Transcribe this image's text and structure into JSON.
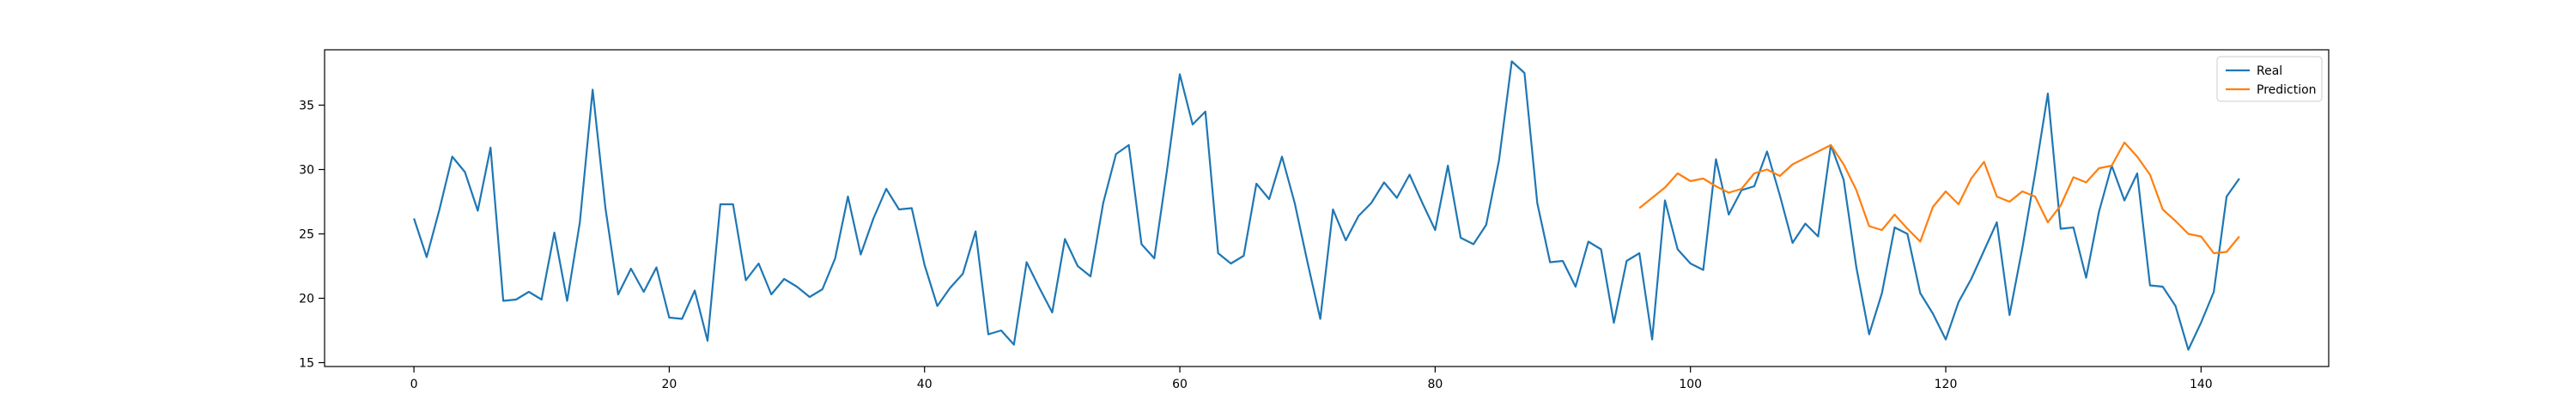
{
  "chart_data": {
    "type": "line",
    "title": "",
    "xlabel": "",
    "ylabel": "",
    "xlim": [
      -7,
      150
    ],
    "ylim": [
      14.7,
      39.3
    ],
    "xticks": [
      0,
      20,
      40,
      60,
      80,
      100,
      120,
      140
    ],
    "yticks": [
      15,
      20,
      25,
      30,
      35
    ],
    "grid": false,
    "legend_position": "top-right",
    "series": [
      {
        "name": "Real",
        "color": "#1f77b4",
        "x": [
          0,
          1,
          2,
          3,
          4,
          5,
          6,
          7,
          8,
          9,
          10,
          11,
          12,
          13,
          14,
          15,
          16,
          17,
          18,
          19,
          20,
          21,
          22,
          23,
          24,
          25,
          26,
          27,
          28,
          29,
          30,
          31,
          32,
          33,
          34,
          35,
          36,
          37,
          38,
          39,
          40,
          41,
          42,
          43,
          44,
          45,
          46,
          47,
          48,
          49,
          50,
          51,
          52,
          53,
          54,
          55,
          56,
          57,
          58,
          59,
          60,
          61,
          62,
          63,
          64,
          65,
          66,
          67,
          68,
          69,
          70,
          71,
          72,
          73,
          74,
          75,
          76,
          77,
          78,
          79,
          80,
          81,
          82,
          83,
          84,
          85,
          86,
          87,
          88,
          89,
          90,
          91,
          92,
          93,
          94,
          95,
          96,
          97,
          98,
          99,
          100,
          101,
          102,
          103,
          104,
          105,
          106,
          107,
          108,
          109,
          110,
          111,
          112,
          113,
          114,
          115,
          116,
          117,
          118,
          119,
          120,
          121,
          122,
          123,
          124,
          125,
          126,
          127,
          128,
          129,
          130,
          131,
          132,
          133,
          134,
          135,
          136,
          137,
          138,
          139,
          140,
          141,
          142,
          143
        ],
        "values": [
          26.2,
          23.2,
          26.9,
          31.0,
          29.8,
          26.8,
          31.7,
          19.8,
          19.9,
          20.5,
          19.9,
          25.1,
          19.8,
          25.9,
          36.2,
          27.0,
          20.3,
          22.3,
          20.5,
          22.4,
          18.5,
          18.4,
          20.6,
          16.7,
          27.3,
          27.3,
          21.4,
          22.7,
          20.3,
          21.5,
          20.9,
          20.1,
          20.7,
          23.1,
          27.9,
          23.4,
          26.2,
          28.5,
          26.9,
          27.0,
          22.6,
          19.4,
          20.8,
          21.9,
          25.2,
          17.2,
          17.5,
          16.4,
          22.8,
          20.8,
          18.9,
          24.6,
          22.5,
          21.7,
          27.4,
          31.2,
          31.9,
          24.2,
          23.1,
          30.0,
          37.4,
          33.5,
          34.5,
          23.5,
          22.7,
          23.3,
          28.9,
          27.7,
          31.0,
          27.4,
          22.8,
          18.4,
          26.9,
          24.5,
          26.4,
          27.4,
          29.0,
          27.8,
          29.6,
          27.4,
          25.3,
          30.3,
          24.7,
          24.2,
          25.7,
          30.7,
          38.4,
          37.5,
          27.4,
          22.8,
          22.9,
          20.9,
          24.4,
          23.8,
          18.1,
          22.9,
          23.5,
          16.8,
          27.6,
          23.8,
          22.7,
          22.2,
          30.8,
          26.5,
          28.4,
          28.7,
          31.4,
          28.0,
          24.3,
          25.8,
          24.8,
          31.9,
          29.2,
          22.4,
          17.2,
          20.4,
          25.5,
          25.0,
          20.4,
          18.8,
          16.8,
          19.7,
          21.5,
          23.7,
          25.9,
          18.7,
          23.9,
          29.7,
          35.9,
          25.4,
          25.5,
          21.6,
          26.7,
          30.3,
          27.6,
          29.7,
          21.0,
          20.9,
          19.4,
          16.0,
          18.1,
          20.5,
          27.9,
          29.3
        ]
      },
      {
        "name": "Prediction",
        "color": "#ff7f0e",
        "x": [
          96,
          97,
          98,
          99,
          100,
          101,
          102,
          103,
          104,
          105,
          106,
          107,
          108,
          109,
          110,
          111,
          112,
          113,
          114,
          115,
          116,
          117,
          118,
          119,
          120,
          121,
          122,
          123,
          124,
          125,
          126,
          127,
          128,
          129,
          130,
          131,
          132,
          133,
          134,
          135,
          136,
          137,
          138,
          139,
          140,
          141,
          142,
          143
        ],
        "values": [
          27.0,
          27.8,
          28.6,
          29.7,
          29.1,
          29.3,
          28.7,
          28.2,
          28.5,
          29.7,
          30.0,
          29.5,
          30.4,
          30.9,
          31.4,
          31.9,
          30.4,
          28.4,
          25.6,
          25.3,
          26.5,
          25.4,
          24.4,
          27.1,
          28.3,
          27.3,
          29.3,
          30.6,
          27.9,
          27.5,
          28.3,
          27.9,
          25.9,
          27.2,
          29.4,
          29.0,
          30.1,
          30.3,
          32.1,
          31.0,
          29.6,
          26.9,
          26.0,
          25.0,
          24.8,
          23.5,
          23.6,
          24.8
        ]
      }
    ]
  }
}
